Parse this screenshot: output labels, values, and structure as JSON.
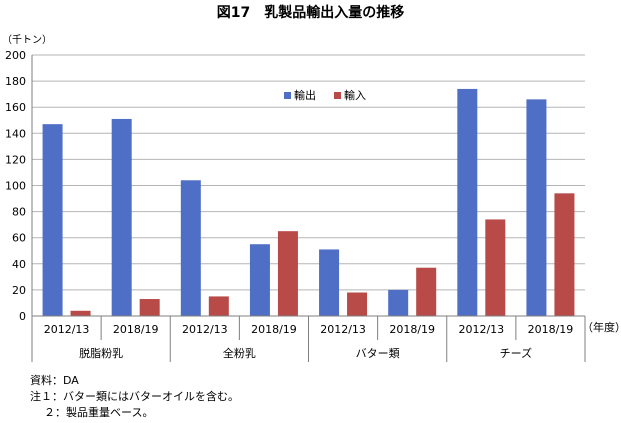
{
  "chart_data": {
    "type": "bar",
    "title": "図17　乳製品輸出入量の推移",
    "ylabel": "（千トン）",
    "xlabel": "（年度）",
    "ylim": [
      0,
      200
    ],
    "y_ticks": [
      0,
      20,
      40,
      60,
      80,
      100,
      120,
      140,
      160,
      180,
      200
    ],
    "grid": true,
    "legend_position": "top-center",
    "groups": [
      "脱脂粉乳",
      "全粉乳",
      "バター類",
      "チーズ"
    ],
    "categories": [
      "2012/13",
      "2018/19",
      "2012/13",
      "2018/19",
      "2012/13",
      "2018/19",
      "2012/13",
      "2018/19"
    ],
    "series": [
      {
        "name": "輸出",
        "color": "#4F6FC6",
        "values": [
          147,
          151,
          104,
          55,
          51,
          20,
          174,
          166
        ]
      },
      {
        "name": "輸入",
        "color": "#B84A47",
        "values": [
          4,
          13,
          15,
          65,
          18,
          37,
          74,
          94
        ]
      }
    ]
  },
  "notes": {
    "source": "資料：DA",
    "note1": "注１：バター類にはバターオイルを含む。",
    "note2": "２：製品重量ベース。"
  }
}
